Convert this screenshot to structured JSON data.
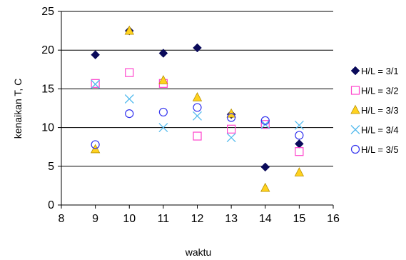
{
  "chart_data": {
    "type": "scatter",
    "xlabel": "waktu",
    "ylabel": "kenaikan T, C",
    "xlim": [
      8,
      16
    ],
    "ylim": [
      0,
      25
    ],
    "xticks": [
      8,
      9,
      10,
      11,
      12,
      13,
      14,
      15,
      16
    ],
    "yticks": [
      0,
      5,
      10,
      15,
      20,
      25
    ],
    "grid": "horizontal",
    "legend_position": "right",
    "series": [
      {
        "name": "H/L = 3/1",
        "marker": "diamond",
        "color": "#0a0a5a",
        "x": [
          9,
          10,
          11,
          12,
          13,
          14,
          15
        ],
        "y": [
          19.4,
          22.5,
          19.6,
          20.3,
          11.7,
          4.9,
          7.9
        ]
      },
      {
        "name": "H/L = 3/2",
        "marker": "square",
        "color": "#ff44cc",
        "x": [
          9,
          10,
          11,
          12,
          13,
          14,
          15
        ],
        "y": [
          15.7,
          17.1,
          15.7,
          8.9,
          9.8,
          10.4,
          6.9
        ]
      },
      {
        "name": "H/L = 3/3",
        "marker": "triangle",
        "color": "#ffd21f",
        "x": [
          9,
          10,
          11,
          12,
          13,
          14,
          15
        ],
        "y": [
          7.2,
          22.5,
          16.1,
          13.9,
          11.8,
          2.2,
          4.2
        ]
      },
      {
        "name": "H/L = 3/4",
        "marker": "x",
        "color": "#55bbee",
        "x": [
          9,
          10,
          11,
          12,
          13,
          14,
          15
        ],
        "y": [
          15.6,
          13.7,
          10.0,
          11.5,
          8.7,
          10.4,
          10.3
        ]
      },
      {
        "name": "H/L = 3/5",
        "marker": "circle",
        "color": "#3333ee",
        "x": [
          9,
          10,
          11,
          12,
          13,
          14,
          15
        ],
        "y": [
          7.8,
          11.8,
          12.0,
          12.6,
          11.3,
          10.9,
          9.0
        ]
      }
    ]
  }
}
